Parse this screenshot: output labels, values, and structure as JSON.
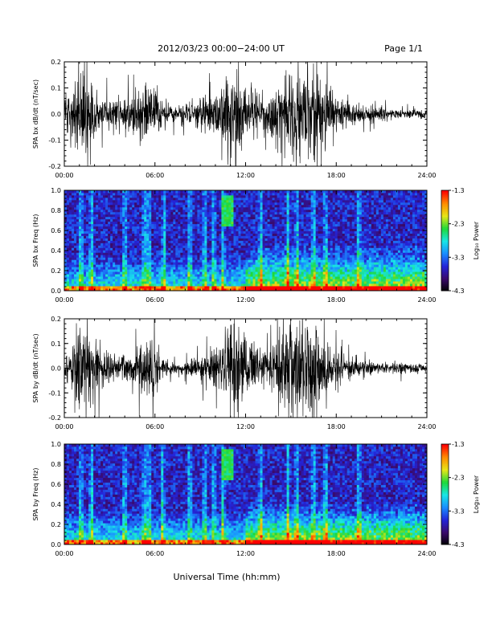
{
  "header": {
    "title": "2012/03/23  00:00−24:00 UT",
    "page": "Page 1/1"
  },
  "footer": {
    "xlabel": "Universal Time (hh:mm)"
  },
  "colors": {
    "trace": "#000000",
    "colormap": [
      "#000000",
      "#3a0a6a",
      "#2424d8",
      "#1a8cff",
      "#19e6e6",
      "#1ed93a",
      "#e6e619",
      "#ff8c00",
      "#ff0000"
    ]
  },
  "chart_data": [
    {
      "type": "line",
      "ylabel": "SPA bx dB/dt (nT/sec)",
      "xlim": [
        0,
        24
      ],
      "ylim": [
        -0.2,
        0.2
      ],
      "x_ticks": [
        "00:00",
        "06:00",
        "12:00",
        "18:00",
        "24:00"
      ],
      "y_ticks": [
        "-0.2",
        "-0.1",
        "0.0",
        "0.1",
        "0.2"
      ],
      "y_tick_values": [
        -0.2,
        -0.1,
        0.0,
        0.1,
        0.2
      ],
      "activity_envelope": {
        "hours": [
          0,
          0.5,
          1.0,
          1.3,
          1.7,
          2.5,
          3.5,
          4.2,
          5.0,
          5.6,
          6.0,
          6.5,
          7.5,
          8.5,
          9.5,
          10.3,
          11.0,
          11.5,
          12.0,
          13.0,
          14.0,
          14.5,
          15.3,
          16.0,
          16.7,
          17.0,
          17.5,
          18.0,
          18.5,
          19.5,
          20.5,
          21.5,
          22.5,
          23.5,
          24
        ],
        "amplitude": [
          0.07,
          0.1,
          0.16,
          0.2,
          0.13,
          0.06,
          0.07,
          0.09,
          0.1,
          0.12,
          0.15,
          0.05,
          0.04,
          0.07,
          0.08,
          0.1,
          0.18,
          0.2,
          0.12,
          0.07,
          0.12,
          0.16,
          0.18,
          0.2,
          0.19,
          0.16,
          0.13,
          0.1,
          0.06,
          0.04,
          0.03,
          0.025,
          0.02,
          0.02,
          0.02
        ]
      }
    },
    {
      "type": "heatmap",
      "ylabel": "SPA bx Freq (Hz)",
      "xlim": [
        0,
        24
      ],
      "ylim": [
        0,
        1.0
      ],
      "x_ticks": [
        "00:00",
        "06:00",
        "12:00",
        "18:00",
        "24:00"
      ],
      "y_ticks": [
        "0.0",
        "0.2",
        "0.4",
        "0.6",
        "0.8",
        "1.0"
      ],
      "y_tick_values": [
        0,
        0.2,
        0.4,
        0.6,
        0.8,
        1.0
      ],
      "colorbar": {
        "label": "Log₁₀ Power",
        "range": [
          -4.3,
          -1.3
        ],
        "ticks": [
          "-1.3",
          "-2.3",
          "-3.3",
          "-4.3"
        ],
        "tick_values": [
          -1.3,
          -2.3,
          -3.3,
          -4.3
        ]
      },
      "features": {
        "vertical_bursts_hours": [
          1.1,
          1.8,
          4.0,
          5.3,
          5.6,
          6.6,
          8.3,
          9.3,
          9.9,
          10.5,
          13.0,
          14.8,
          15.4,
          16.5,
          17.3,
          19.5
        ],
        "high_freq_emission": {
          "hours": [
            10.4,
            11.2
          ],
          "freq": [
            0.65,
            0.95
          ]
        },
        "broadband_band": {
          "hours": [
            12.0,
            24.0
          ],
          "freq": [
            0.0,
            0.45
          ]
        }
      }
    },
    {
      "type": "line",
      "ylabel": "SPA by dB/dt (nT/sec)",
      "xlim": [
        0,
        24
      ],
      "ylim": [
        -0.2,
        0.2
      ],
      "x_ticks": [
        "00:00",
        "06:00",
        "12:00",
        "18:00",
        "24:00"
      ],
      "y_ticks": [
        "-0.2",
        "-0.1",
        "0.0",
        "0.1",
        "0.2"
      ],
      "y_tick_values": [
        -0.2,
        -0.1,
        0.0,
        0.1,
        0.2
      ],
      "activity_envelope": {
        "hours": [
          0,
          0.5,
          1.0,
          1.5,
          2.0,
          2.5,
          3.5,
          4.2,
          5.0,
          5.6,
          6.0,
          6.5,
          7.5,
          8.5,
          9.5,
          10.3,
          11.0,
          11.5,
          12.0,
          13.0,
          14.0,
          14.5,
          15.3,
          16.0,
          16.7,
          17.0,
          17.5,
          18.0,
          18.5,
          19.5,
          20.5,
          21.5,
          22.5,
          23.5,
          24
        ],
        "amplitude": [
          0.08,
          0.12,
          0.18,
          0.2,
          0.14,
          0.08,
          0.05,
          0.06,
          0.1,
          0.12,
          0.13,
          0.04,
          0.02,
          0.04,
          0.07,
          0.11,
          0.2,
          0.2,
          0.15,
          0.06,
          0.12,
          0.18,
          0.2,
          0.2,
          0.2,
          0.14,
          0.12,
          0.09,
          0.05,
          0.04,
          0.03,
          0.025,
          0.025,
          0.02,
          0.02
        ]
      }
    },
    {
      "type": "heatmap",
      "ylabel": "SPA by Freq (Hz)",
      "xlim": [
        0,
        24
      ],
      "ylim": [
        0,
        1.0
      ],
      "x_ticks": [
        "00:00",
        "06:00",
        "12:00",
        "18:00",
        "24:00"
      ],
      "y_ticks": [
        "0.0",
        "0.2",
        "0.4",
        "0.6",
        "0.8",
        "1.0"
      ],
      "y_tick_values": [
        0,
        0.2,
        0.4,
        0.6,
        0.8,
        1.0
      ],
      "colorbar": {
        "label": "Log₁₀ Power",
        "range": [
          -4.3,
          -1.3
        ],
        "ticks": [
          "-1.3",
          "-2.3",
          "-3.3",
          "-4.3"
        ],
        "tick_values": [
          -1.3,
          -2.3,
          -3.3,
          -4.3
        ]
      },
      "features": {
        "vertical_bursts_hours": [
          1.1,
          1.8,
          4.0,
          5.3,
          5.6,
          6.5,
          8.3,
          9.3,
          9.9,
          10.5,
          13.0,
          14.8,
          15.4,
          16.5,
          17.3,
          19.5
        ],
        "high_freq_emission": {
          "hours": [
            10.4,
            11.2
          ],
          "freq": [
            0.65,
            0.95
          ]
        },
        "broadband_band": {
          "hours": [
            12.0,
            24.0
          ],
          "freq": [
            0.0,
            0.4
          ]
        }
      }
    }
  ]
}
